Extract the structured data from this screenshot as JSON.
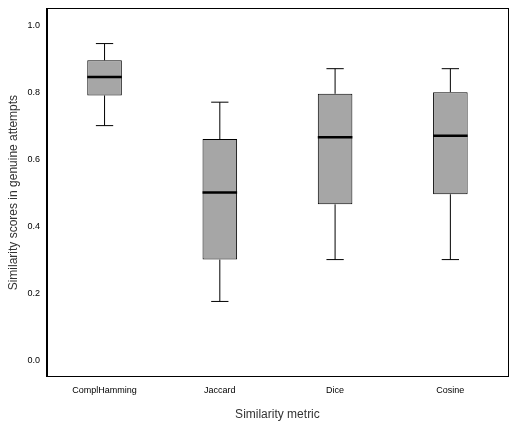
{
  "chart_data": {
    "type": "box",
    "x_label": "Similarity metric",
    "y_label": "Similarity scores in genuine attempts",
    "categories": [
      "ComplHamming",
      "Jaccard",
      "Dice",
      "Cosine"
    ],
    "min": [
      0.7,
      0.175,
      0.3,
      0.3
    ],
    "q1": [
      0.79,
      0.3,
      0.465,
      0.495
    ],
    "median": [
      0.845,
      0.5,
      0.665,
      0.67
    ],
    "q3": [
      0.895,
      0.66,
      0.795,
      0.8
    ],
    "max": [
      0.945,
      0.77,
      0.87,
      0.87
    ],
    "color": "#a6a6a6",
    "ylim": [
      -0.05,
      1.05
    ],
    "yticks": [
      {
        "value": 0,
        "label": "0.0"
      },
      {
        "value": 0.2,
        "label": "0.2"
      },
      {
        "value": 0.4,
        "label": "0.4"
      },
      {
        "value": 0.6,
        "label": "0.6"
      },
      {
        "value": 0.8,
        "label": "0.8"
      },
      {
        "value": 1,
        "label": "1.0"
      }
    ],
    "grid": false
  }
}
